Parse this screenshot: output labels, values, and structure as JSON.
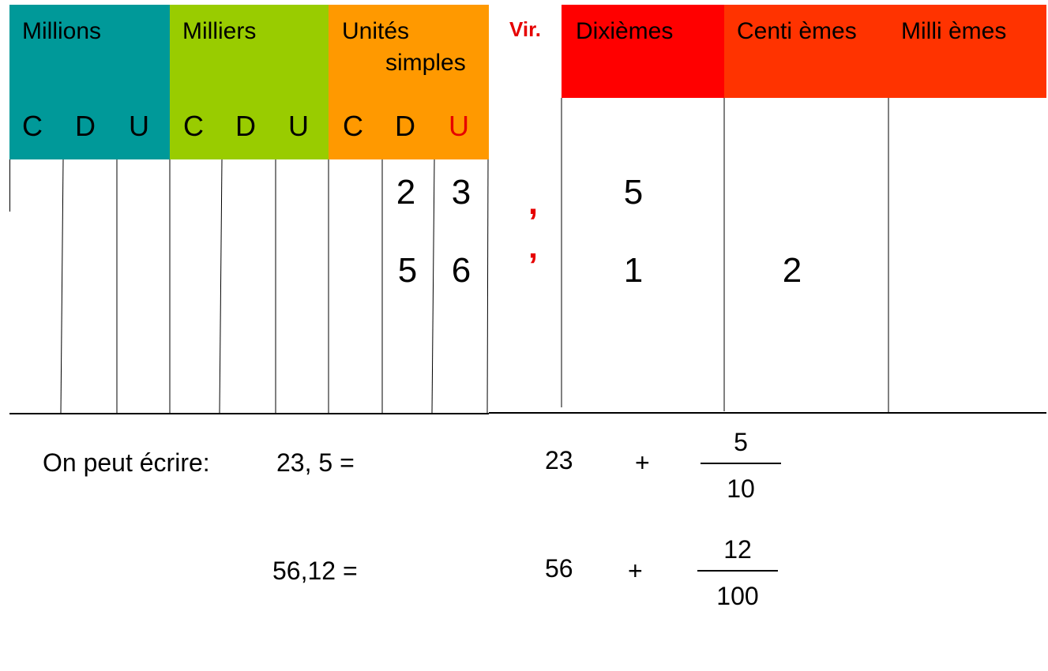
{
  "colors": {
    "millions": "#009999",
    "milliers": "#99cc00",
    "unites": "#ff9900",
    "dixiemes": "#ff0000",
    "centiemes_milliemes": "#ff3300",
    "accent_red": "#e60000"
  },
  "table": {
    "groups": {
      "millions": "Millions",
      "milliers": "Milliers",
      "unites_line1": "Unités",
      "unites_line2": "simples",
      "virgule": "Vir.",
      "dixiemes": "Dixièmes",
      "centiemes": "Centi èmes",
      "milliemes": "Milli èmes"
    },
    "subheaders": [
      "C",
      "D",
      "U",
      "C",
      "D",
      "U",
      "C",
      "D",
      "U"
    ],
    "rows": [
      {
        "dizaines": "2",
        "unites": "3",
        "virgule": ",",
        "dixiemes": "5",
        "centiemes": ""
      },
      {
        "dizaines": "5",
        "unites": "6",
        "virgule": "’",
        "dixiemes": "1",
        "centiemes": "2"
      }
    ]
  },
  "equations": {
    "intro": "On peut écrire:",
    "lines": [
      {
        "lhs": "23, 5 =",
        "integer": "23",
        "plus": "+",
        "numerator": "5",
        "denominator": "10"
      },
      {
        "lhs": "56,12 =",
        "integer": "56",
        "plus": "+",
        "numerator": "12",
        "denominator": "100"
      }
    ]
  }
}
